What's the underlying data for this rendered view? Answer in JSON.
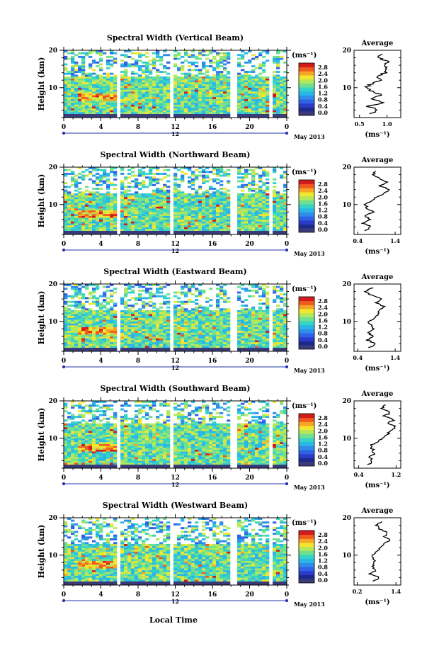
{
  "colors": {
    "scale": [
      "#1c2a8e",
      "#2a3cc8",
      "#2f63e6",
      "#2f8de8",
      "#2ab6e6",
      "#37d3c6",
      "#6fe08f",
      "#b4e85a",
      "#f2e631",
      "#f7a526",
      "#ef5a1f",
      "#d11c1c"
    ],
    "bottom_band": "#3a3a78",
    "axis": "#000000",
    "divider": "#2233aa"
  },
  "common": {
    "height_axis_label": "Height (km)",
    "time_ticks": [
      "0",
      "4",
      "8",
      "12",
      "16",
      "20",
      "0"
    ],
    "day_label": "12",
    "month_label": "May 2013",
    "xlabel_bottom": "Local Time",
    "colorbar_unit": "(ms⁻¹)",
    "colorbar_ticks": [
      "2.8",
      "2.4",
      "2.0",
      "1.6",
      "1.2",
      "0.8",
      "0.4",
      "0.0"
    ],
    "average_title": "Average",
    "average_unit": "(ms⁻¹)",
    "height_ticks": [
      "20",
      "10"
    ]
  },
  "chart_data": [
    {
      "type": "heatmap",
      "title": "Spectral Width (Vertical Beam)",
      "xlabel": "Local Time",
      "ylabel": "Height (km)",
      "xlim": [
        0,
        24
      ],
      "ylim": [
        2,
        20
      ],
      "colorbar": {
        "unit": "(ms⁻¹)",
        "range": [
          0.0,
          2.8
        ]
      },
      "data_gaps_hours": [
        [
          0.6,
          0.9
        ],
        [
          5.8,
          6.1
        ],
        [
          11.4,
          11.7
        ],
        [
          17.8,
          18.2
        ],
        [
          18.4,
          18.6
        ],
        [
          22.0,
          22.3
        ]
      ],
      "lower_echo_top_km": 13,
      "average": {
        "title": "Average",
        "unit": "(ms⁻¹)",
        "xticks": [
          "0.5",
          "1.0"
        ],
        "xlim": [
          0.4,
          1.25
        ],
        "heights": [
          3,
          4,
          5,
          6,
          7,
          8,
          9,
          10,
          11,
          12,
          13,
          14,
          15,
          16,
          17,
          18,
          19
        ],
        "values": [
          0.7,
          0.85,
          0.65,
          0.95,
          0.7,
          0.9,
          0.75,
          0.6,
          0.72,
          0.88,
          0.8,
          0.97,
          1.02,
          0.95,
          1.0,
          0.85,
          0.9
        ]
      }
    },
    {
      "type": "heatmap",
      "title": "Spectral Width (Northward Beam)",
      "xlabel": "Local Time",
      "ylabel": "Height (km)",
      "xlim": [
        0,
        24
      ],
      "ylim": [
        2,
        20
      ],
      "colorbar": {
        "unit": "(ms⁻¹)",
        "range": [
          0.0,
          2.8
        ]
      },
      "data_gaps_hours": [
        [
          0.6,
          0.9
        ],
        [
          5.8,
          6.1
        ],
        [
          11.4,
          11.7
        ],
        [
          17.8,
          18.2
        ],
        [
          18.4,
          18.6
        ],
        [
          22.0,
          22.3
        ]
      ],
      "lower_echo_top_km": 13,
      "average": {
        "title": "Average",
        "unit": "(ms⁻¹)",
        "xticks": [
          "0.4",
          "1.4"
        ],
        "xlim": [
          0.3,
          1.55
        ],
        "heights": [
          3,
          4,
          5,
          6,
          7,
          8,
          9,
          10,
          11,
          12,
          13,
          14,
          15,
          16,
          17,
          18,
          19
        ],
        "values": [
          0.6,
          0.75,
          0.55,
          0.7,
          0.6,
          0.8,
          0.65,
          0.6,
          0.75,
          0.9,
          1.1,
          1.25,
          1.0,
          1.2,
          0.95,
          0.8,
          0.9
        ]
      }
    },
    {
      "type": "heatmap",
      "title": "Spectral Width (Eastward Beam)",
      "xlabel": "Local Time",
      "ylabel": "Height (km)",
      "xlim": [
        0,
        24
      ],
      "ylim": [
        2,
        20
      ],
      "colorbar": {
        "unit": "(ms⁻¹)",
        "range": [
          0.0,
          2.8
        ]
      },
      "data_gaps_hours": [
        [
          0.6,
          0.9
        ],
        [
          5.8,
          6.1
        ],
        [
          11.4,
          11.7
        ],
        [
          17.8,
          18.2
        ],
        [
          18.4,
          18.6
        ],
        [
          22.0,
          22.3
        ]
      ],
      "lower_echo_top_km": 13,
      "average": {
        "title": "Average",
        "unit": "(ms⁻¹)",
        "xticks": [
          "0.4",
          "1.4"
        ],
        "xlim": [
          0.3,
          1.55
        ],
        "heights": [
          3,
          4,
          5,
          6,
          7,
          8,
          9,
          10,
          11,
          12,
          13,
          14,
          15,
          16,
          17,
          18,
          19
        ],
        "values": [
          0.7,
          0.9,
          0.65,
          0.8,
          0.7,
          0.85,
          0.75,
          0.7,
          0.85,
          0.95,
          1.0,
          1.1,
          0.9,
          1.05,
          0.75,
          0.6,
          0.8
        ]
      }
    },
    {
      "type": "heatmap",
      "title": "Spectral Width (Southward Beam)",
      "xlabel": "Local Time",
      "ylabel": "Height (km)",
      "xlim": [
        0,
        24
      ],
      "ylim": [
        2,
        20
      ],
      "colorbar": {
        "unit": "(ms⁻¹)",
        "range": [
          0.0,
          2.8
        ]
      },
      "data_gaps_hours": [
        [
          0.6,
          0.9
        ],
        [
          5.8,
          6.1
        ],
        [
          11.4,
          11.7
        ],
        [
          17.8,
          18.2
        ],
        [
          18.4,
          18.6
        ],
        [
          22.0,
          22.3
        ]
      ],
      "lower_echo_top_km": 14,
      "average": {
        "title": "Average",
        "unit": "(ms⁻¹)",
        "xticks": [
          "0.4",
          "1.2"
        ],
        "xlim": [
          0.3,
          1.3
        ],
        "heights": [
          3,
          4,
          5,
          6,
          7,
          8,
          9,
          10,
          11,
          12,
          13,
          14,
          15,
          16,
          17,
          18,
          19
        ],
        "values": [
          0.6,
          0.7,
          0.65,
          0.75,
          0.7,
          0.65,
          0.8,
          0.9,
          1.0,
          1.1,
          1.2,
          1.05,
          1.15,
          0.95,
          1.1,
          0.9,
          1.0
        ]
      }
    },
    {
      "type": "heatmap",
      "title": "Spectral Width (Westward Beam)",
      "xlabel": "Local Time",
      "ylabel": "Height (km)",
      "xlim": [
        0,
        24
      ],
      "ylim": [
        2,
        20
      ],
      "colorbar": {
        "unit": "(ms⁻¹)",
        "range": [
          0.0,
          2.8
        ]
      },
      "data_gaps_hours": [
        [
          0.6,
          0.9
        ],
        [
          5.8,
          6.1
        ],
        [
          11.4,
          11.7
        ],
        [
          17.8,
          18.2
        ],
        [
          18.4,
          18.6
        ],
        [
          22.0,
          22.3
        ]
      ],
      "lower_echo_top_km": 13,
      "average": {
        "title": "Average",
        "unit": "(ms⁻¹)",
        "xticks": [
          "0.2",
          "1.4"
        ],
        "xlim": [
          0.1,
          1.55
        ],
        "heights": [
          3,
          4,
          5,
          6,
          7,
          8,
          9,
          10,
          11,
          12,
          13,
          14,
          15,
          16,
          17,
          18,
          19
        ],
        "values": [
          0.7,
          0.9,
          0.6,
          0.8,
          0.65,
          0.75,
          0.7,
          0.65,
          0.8,
          0.95,
          1.0,
          1.2,
          1.05,
          1.15,
          0.9,
          0.8,
          0.95
        ]
      }
    }
  ]
}
